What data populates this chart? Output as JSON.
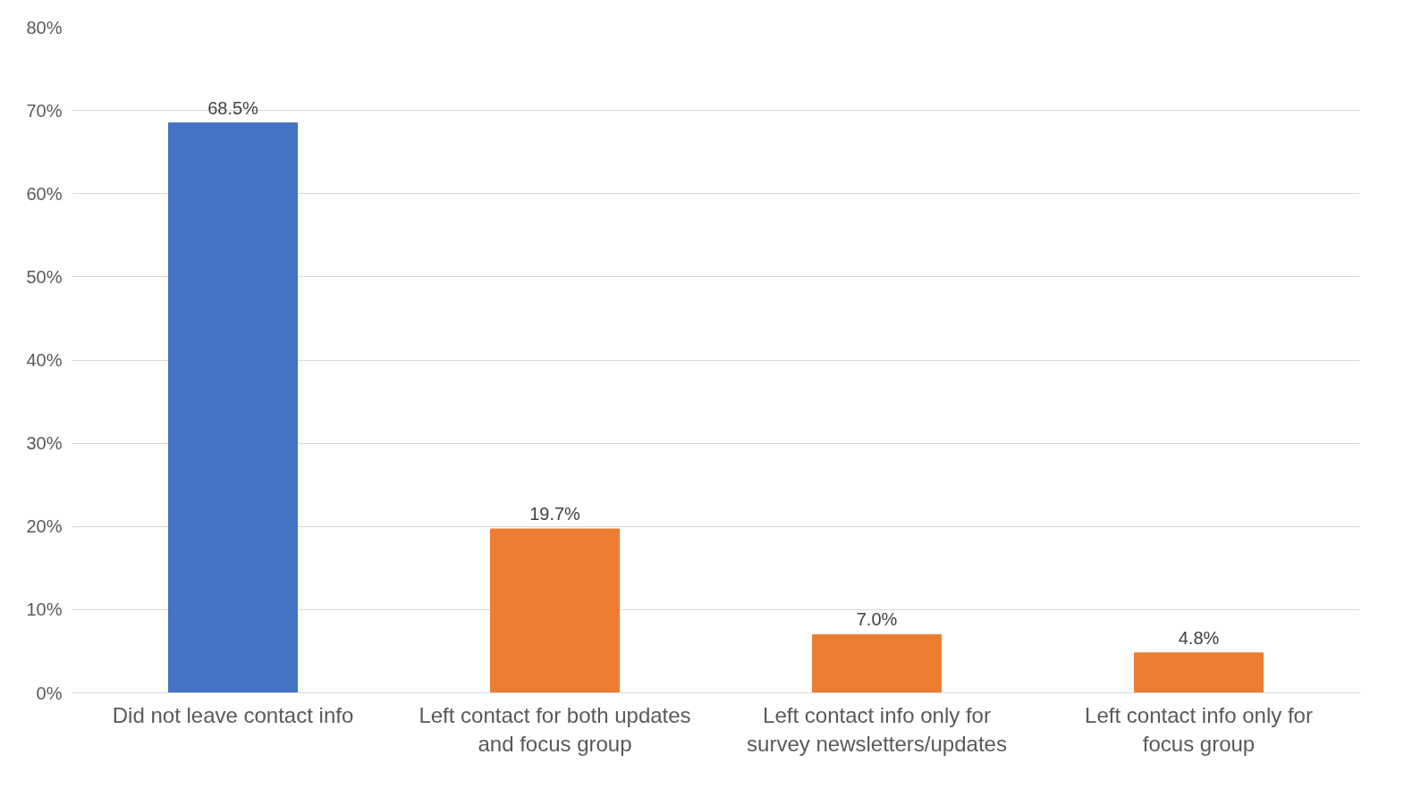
{
  "chart_data": {
    "type": "bar",
    "categories": [
      "Did not leave contact info",
      "Left contact for both updates\nand focus group",
      "Left contact info only for\nsurvey newsletters/updates",
      "Left contact info only for\nfocus group"
    ],
    "values": [
      68.5,
      19.7,
      7.0,
      4.8
    ],
    "colors": [
      "#4472c4",
      "#ed7d31",
      "#ed7d31",
      "#ed7d31"
    ],
    "value_labels": [
      "68.5%",
      "19.7%",
      "7.0%",
      "4.8%"
    ],
    "ylim": [
      0,
      80
    ],
    "yticks": [
      {
        "value": 0,
        "label": "0%"
      },
      {
        "value": 10,
        "label": "10%"
      },
      {
        "value": 20,
        "label": "20%"
      },
      {
        "value": 30,
        "label": "30%"
      },
      {
        "value": 40,
        "label": "40%"
      },
      {
        "value": 50,
        "label": "50%"
      },
      {
        "value": 60,
        "label": "60%"
      },
      {
        "value": 70,
        "label": "70%"
      },
      {
        "value": 80,
        "label": "80%"
      }
    ],
    "grid": "y"
  }
}
